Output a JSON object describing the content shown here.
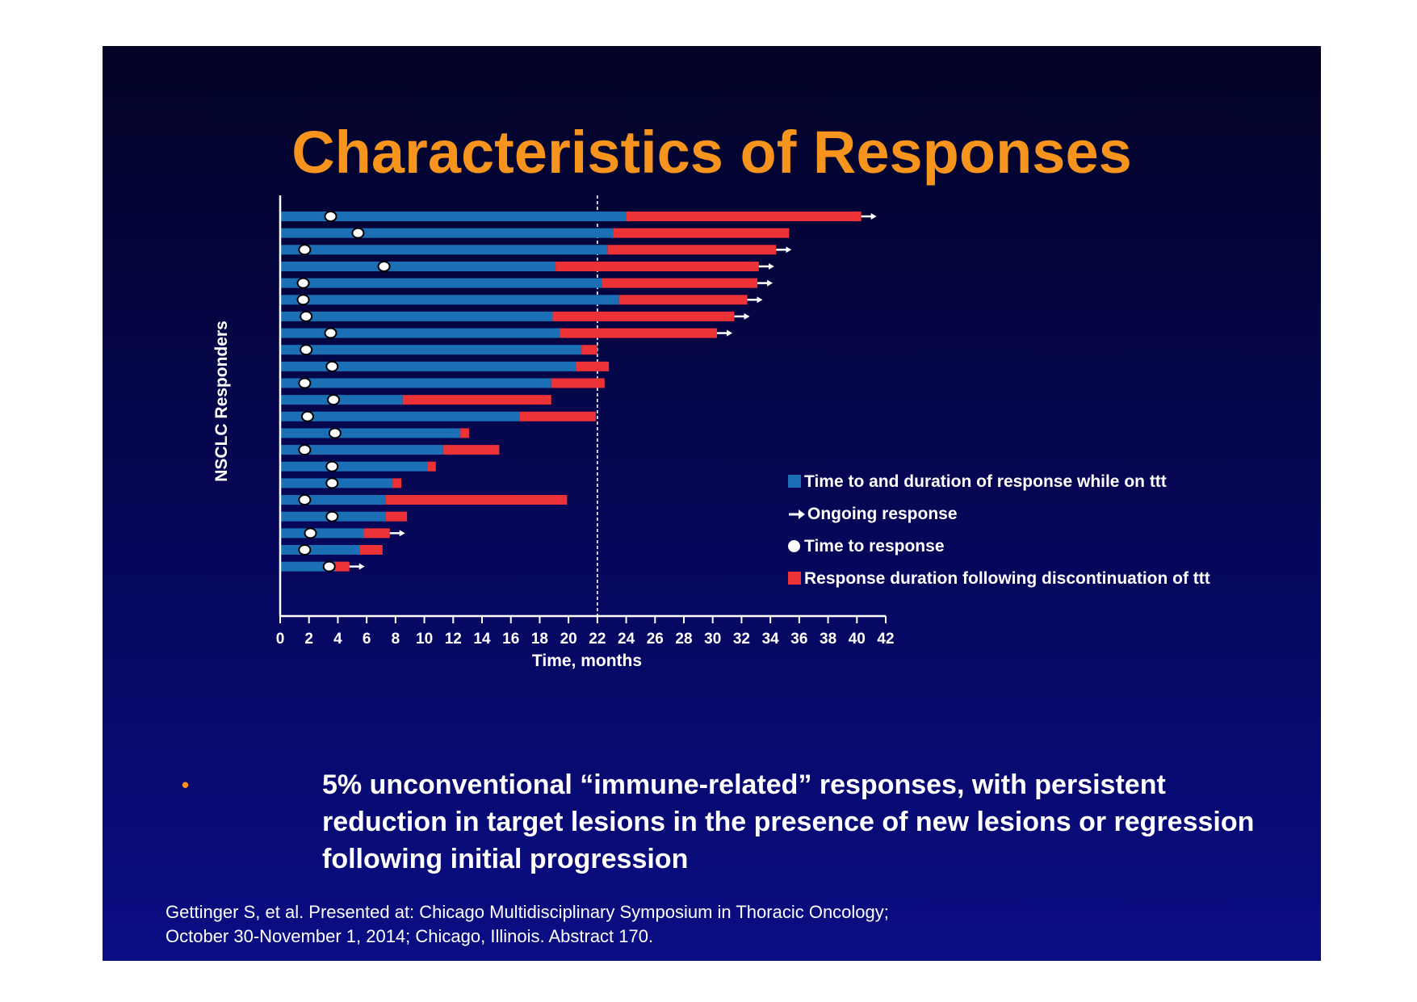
{
  "slide": {
    "title": "Characteristics of Responses",
    "bullet": "5% unconventional “immune-related” responses,  with persistent reduction in target lesions in the presence of new lesions or regression following initial progression",
    "citation_line1": "Gettinger S, et al. Presented at: Chicago Multidisciplinary Symposium in Thoracic Oncology;",
    "citation_line2": "October 30-November 1, 2014; Chicago, Illinois. Abstract 170."
  },
  "colors": {
    "title": "#f7941e",
    "on_treatment": "#1b6fb4",
    "after_discontinuation": "#ed3237",
    "text": "#ffffff"
  },
  "legend": {
    "on_treatment": "Time to and duration of response while on ttt",
    "ongoing": "Ongoing response",
    "time_to_response": "Time to response",
    "after_discontinuation": "Response duration following discontinuation of ttt"
  },
  "chart_data": {
    "type": "bar",
    "orientation": "horizontal",
    "title": "",
    "xlabel": "Time, months",
    "ylabel": "NSCLC Responders",
    "xlim": [
      0,
      42
    ],
    "xticks": [
      0,
      2,
      4,
      6,
      8,
      10,
      12,
      14,
      16,
      18,
      20,
      22,
      24,
      26,
      28,
      30,
      32,
      34,
      36,
      38,
      40,
      42
    ],
    "reference_line_x": 22,
    "legend_position": "right",
    "series": [
      {
        "name": "Time to and duration of response while on ttt",
        "key": "on_treatment_end"
      },
      {
        "name": "Response duration following discontinuation of ttt",
        "key": "response_end"
      },
      {
        "name": "Time to response",
        "key": "time_to_response"
      },
      {
        "name": "Ongoing response",
        "key": "ongoing"
      }
    ],
    "responders": [
      {
        "on_treatment_end": 24.0,
        "response_end": 40.3,
        "time_to_response": 3.5,
        "ongoing": true
      },
      {
        "on_treatment_end": 23.1,
        "response_end": 35.3,
        "time_to_response": 5.4,
        "ongoing": false
      },
      {
        "on_treatment_end": 22.7,
        "response_end": 34.4,
        "time_to_response": 1.7,
        "ongoing": true
      },
      {
        "on_treatment_end": 19.1,
        "response_end": 33.2,
        "time_to_response": 7.2,
        "ongoing": true
      },
      {
        "on_treatment_end": 22.3,
        "response_end": 33.1,
        "time_to_response": 1.6,
        "ongoing": true
      },
      {
        "on_treatment_end": 23.5,
        "response_end": 32.4,
        "time_to_response": 1.6,
        "ongoing": true
      },
      {
        "on_treatment_end": 18.9,
        "response_end": 31.5,
        "time_to_response": 1.8,
        "ongoing": true
      },
      {
        "on_treatment_end": 19.4,
        "response_end": 30.3,
        "time_to_response": 3.5,
        "ongoing": true
      },
      {
        "on_treatment_end": 20.9,
        "response_end": 22.0,
        "time_to_response": 1.8,
        "ongoing": false
      },
      {
        "on_treatment_end": 20.5,
        "response_end": 22.8,
        "time_to_response": 3.6,
        "ongoing": false
      },
      {
        "on_treatment_end": 18.8,
        "response_end": 22.5,
        "time_to_response": 1.7,
        "ongoing": false
      },
      {
        "on_treatment_end": 8.5,
        "response_end": 18.8,
        "time_to_response": 3.7,
        "ongoing": false
      },
      {
        "on_treatment_end": 16.6,
        "response_end": 21.9,
        "time_to_response": 1.9,
        "ongoing": false
      },
      {
        "on_treatment_end": 12.5,
        "response_end": 13.1,
        "time_to_response": 3.8,
        "ongoing": false
      },
      {
        "on_treatment_end": 11.3,
        "response_end": 15.2,
        "time_to_response": 1.7,
        "ongoing": false
      },
      {
        "on_treatment_end": 10.2,
        "response_end": 10.8,
        "time_to_response": 3.6,
        "ongoing": false
      },
      {
        "on_treatment_end": 7.8,
        "response_end": 8.4,
        "time_to_response": 3.6,
        "ongoing": false
      },
      {
        "on_treatment_end": 7.3,
        "response_end": 19.9,
        "time_to_response": 1.7,
        "ongoing": false
      },
      {
        "on_treatment_end": 7.3,
        "response_end": 8.8,
        "time_to_response": 3.6,
        "ongoing": false
      },
      {
        "on_treatment_end": 5.8,
        "response_end": 7.6,
        "time_to_response": 2.1,
        "ongoing": true
      },
      {
        "on_treatment_end": 5.5,
        "response_end": 7.1,
        "time_to_response": 1.7,
        "ongoing": false
      },
      {
        "on_treatment_end": 3.8,
        "response_end": 4.8,
        "time_to_response": 3.4,
        "ongoing": true
      }
    ]
  }
}
